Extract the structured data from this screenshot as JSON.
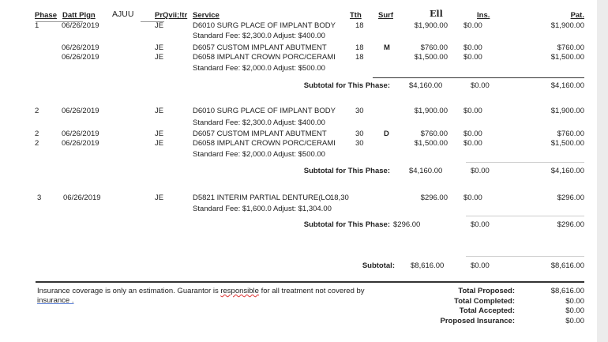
{
  "headers": {
    "phase": "Phase",
    "date": "Datt Plgn",
    "extra": "AJUU",
    "provider": "PrQvii;!tr",
    "service": "Service",
    "tooth": "Tth",
    "surf": "Surf",
    "fee": "Ell",
    "ins": "Ins.",
    "pat": "Pat."
  },
  "phases": [
    {
      "rows": [
        {
          "type": "item",
          "phase": "1",
          "date": "06/26/2019",
          "provider": "JE",
          "service": "D6010 SURG PLACE OF IMPLANT BODY",
          "tooth": "18",
          "surf": "",
          "fee": "$1,900.00",
          "ins": "$0.00",
          "pat": "$1,900.00"
        },
        {
          "type": "note",
          "text": "Standard Fee: $2,300.0 Adjust: $400.00"
        },
        {
          "type": "item",
          "phase": "",
          "date": "06/26/2019",
          "provider": "JE",
          "service": "D6057 CUSTOM IMPLANT ABUTMENT",
          "tooth": "18",
          "surf": "M",
          "fee": "$760.00",
          "ins": "$0.00",
          "pat": "$760.00"
        },
        {
          "type": "item",
          "phase": "",
          "date": "06/26/2019",
          "provider": "JE",
          "service": "D6058 IMPLANT CROWN PORC/CERAMI",
          "tooth": "18",
          "surf": "",
          "fee": "$1,500.00",
          "ins": "$0.00",
          "pat": "$1,500.00"
        },
        {
          "type": "note",
          "text": "Standard Fee: $2,000.0 Adjust: $500.00"
        }
      ],
      "subtotal": {
        "label": "Subtotal for This Phase:",
        "fee": "$4,160.00",
        "ins": "$0.00",
        "pat": "$4,160.00"
      }
    },
    {
      "rows": [
        {
          "type": "item",
          "phase": "2",
          "date": "06/26/2019",
          "provider": "JE",
          "service": "D6010 SURG PLACE OF IMPLANT BODY",
          "tooth": "30",
          "surf": "",
          "fee": "$1,900.00",
          "ins": "$0.00",
          "pat": "$1,900.00"
        },
        {
          "type": "note",
          "text": "Standard Fee: $2,300.0 Adjust: $400.00"
        },
        {
          "type": "item",
          "phase": "2",
          "date": "06/26/2019",
          "provider": "JE",
          "service": "D6057 CUSTOM IMPLANT ABUTMENT",
          "tooth": "30",
          "surf": "D",
          "fee": "$760.00",
          "ins": "$0.00",
          "pat": "$760.00"
        },
        {
          "type": "item",
          "phase": "2",
          "date": "06/26/2019",
          "provider": "JE",
          "service": "D6058 IMPLANT CROWN PORC/CERAMI",
          "tooth": "30",
          "surf": "",
          "fee": "$1,500.00",
          "ins": "$0.00",
          "pat": "$1,500.00"
        },
        {
          "type": "note",
          "text": "Standard Fee: $2,000.0 Adjust: $500.00"
        }
      ],
      "subtotal": {
        "label": "Subtotal for This Phase:",
        "fee": "$4,160.00",
        "ins": "$0.00",
        "pat": "$4,160.00"
      }
    },
    {
      "rows": [
        {
          "type": "item",
          "phase": "3",
          "date": "06/26/2019",
          "provider": "JE",
          "service": "D5821  INTERIM PARTIAL DENTURE(LO",
          "tooth": "18,30",
          "surf": "",
          "fee": "$296.00",
          "ins": "$0.00",
          "pat": "$296.00"
        },
        {
          "type": "note",
          "text": "Standard Fee: $1,600.0 Adjust: $1,304.00"
        }
      ],
      "subtotal": {
        "label": "Subtotal for This Phase:",
        "fee": "$296.00",
        "ins": "$0.00",
        "pat": "$296.00"
      }
    }
  ],
  "grand_subtotal": {
    "label": "Subtotal:",
    "fee": "$8,616.00",
    "ins": "$0.00",
    "pat": "$8,616.00"
  },
  "footer": {
    "disclaimer_1": "Insurance coverage is only an estimation. Guarantor is ",
    "disclaimer_word": "responsible",
    "disclaimer_2": " for all treatment not covered by",
    "disclaimer_line2": "insurance .",
    "totals": [
      {
        "label": "Total Proposed:",
        "value": "$8,616.00"
      },
      {
        "label": "Total Completed:",
        "value": "$0.00"
      },
      {
        "label": "Total Accepted:",
        "value": "$0.00"
      },
      {
        "label": "Proposed Insurance:",
        "value": "$0.00"
      }
    ]
  }
}
